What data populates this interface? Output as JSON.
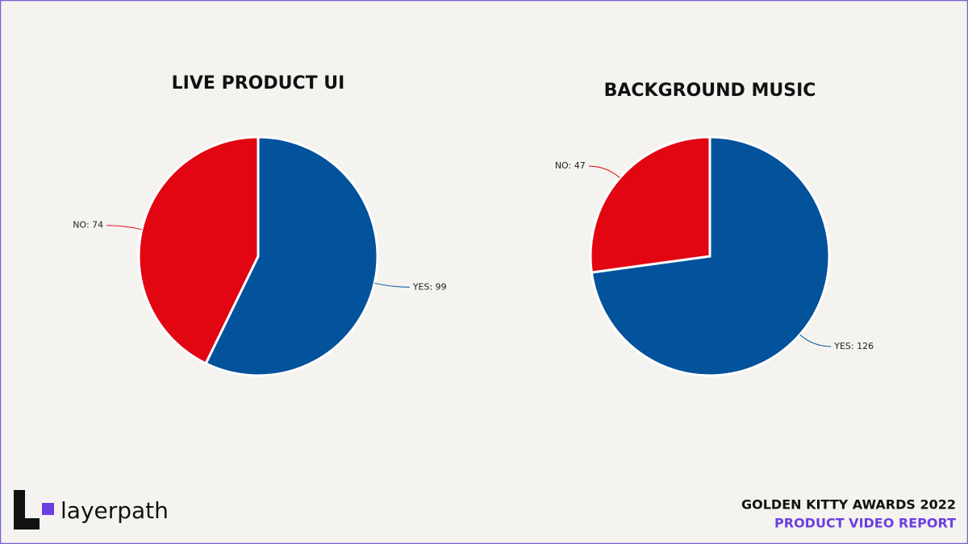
{
  "chart_data": [
    {
      "type": "pie",
      "title": "LIVE PRODUCT UI",
      "values": [
        99,
        74
      ],
      "value_labels": [
        "YES: 99",
        "NO: 74"
      ],
      "colors": [
        "#02529c",
        "#e20613"
      ]
    },
    {
      "type": "pie",
      "title": "BACKGROUND MUSIC",
      "values": [
        126,
        47
      ],
      "value_labels": [
        "YES: 126",
        "NO: 47"
      ],
      "colors": [
        "#02529c",
        "#e20613"
      ]
    }
  ],
  "footer": {
    "brand": "layerpath",
    "event": "GOLDEN KITTY AWARDS 2022",
    "report": "PRODUCT VIDEO REPORT"
  }
}
